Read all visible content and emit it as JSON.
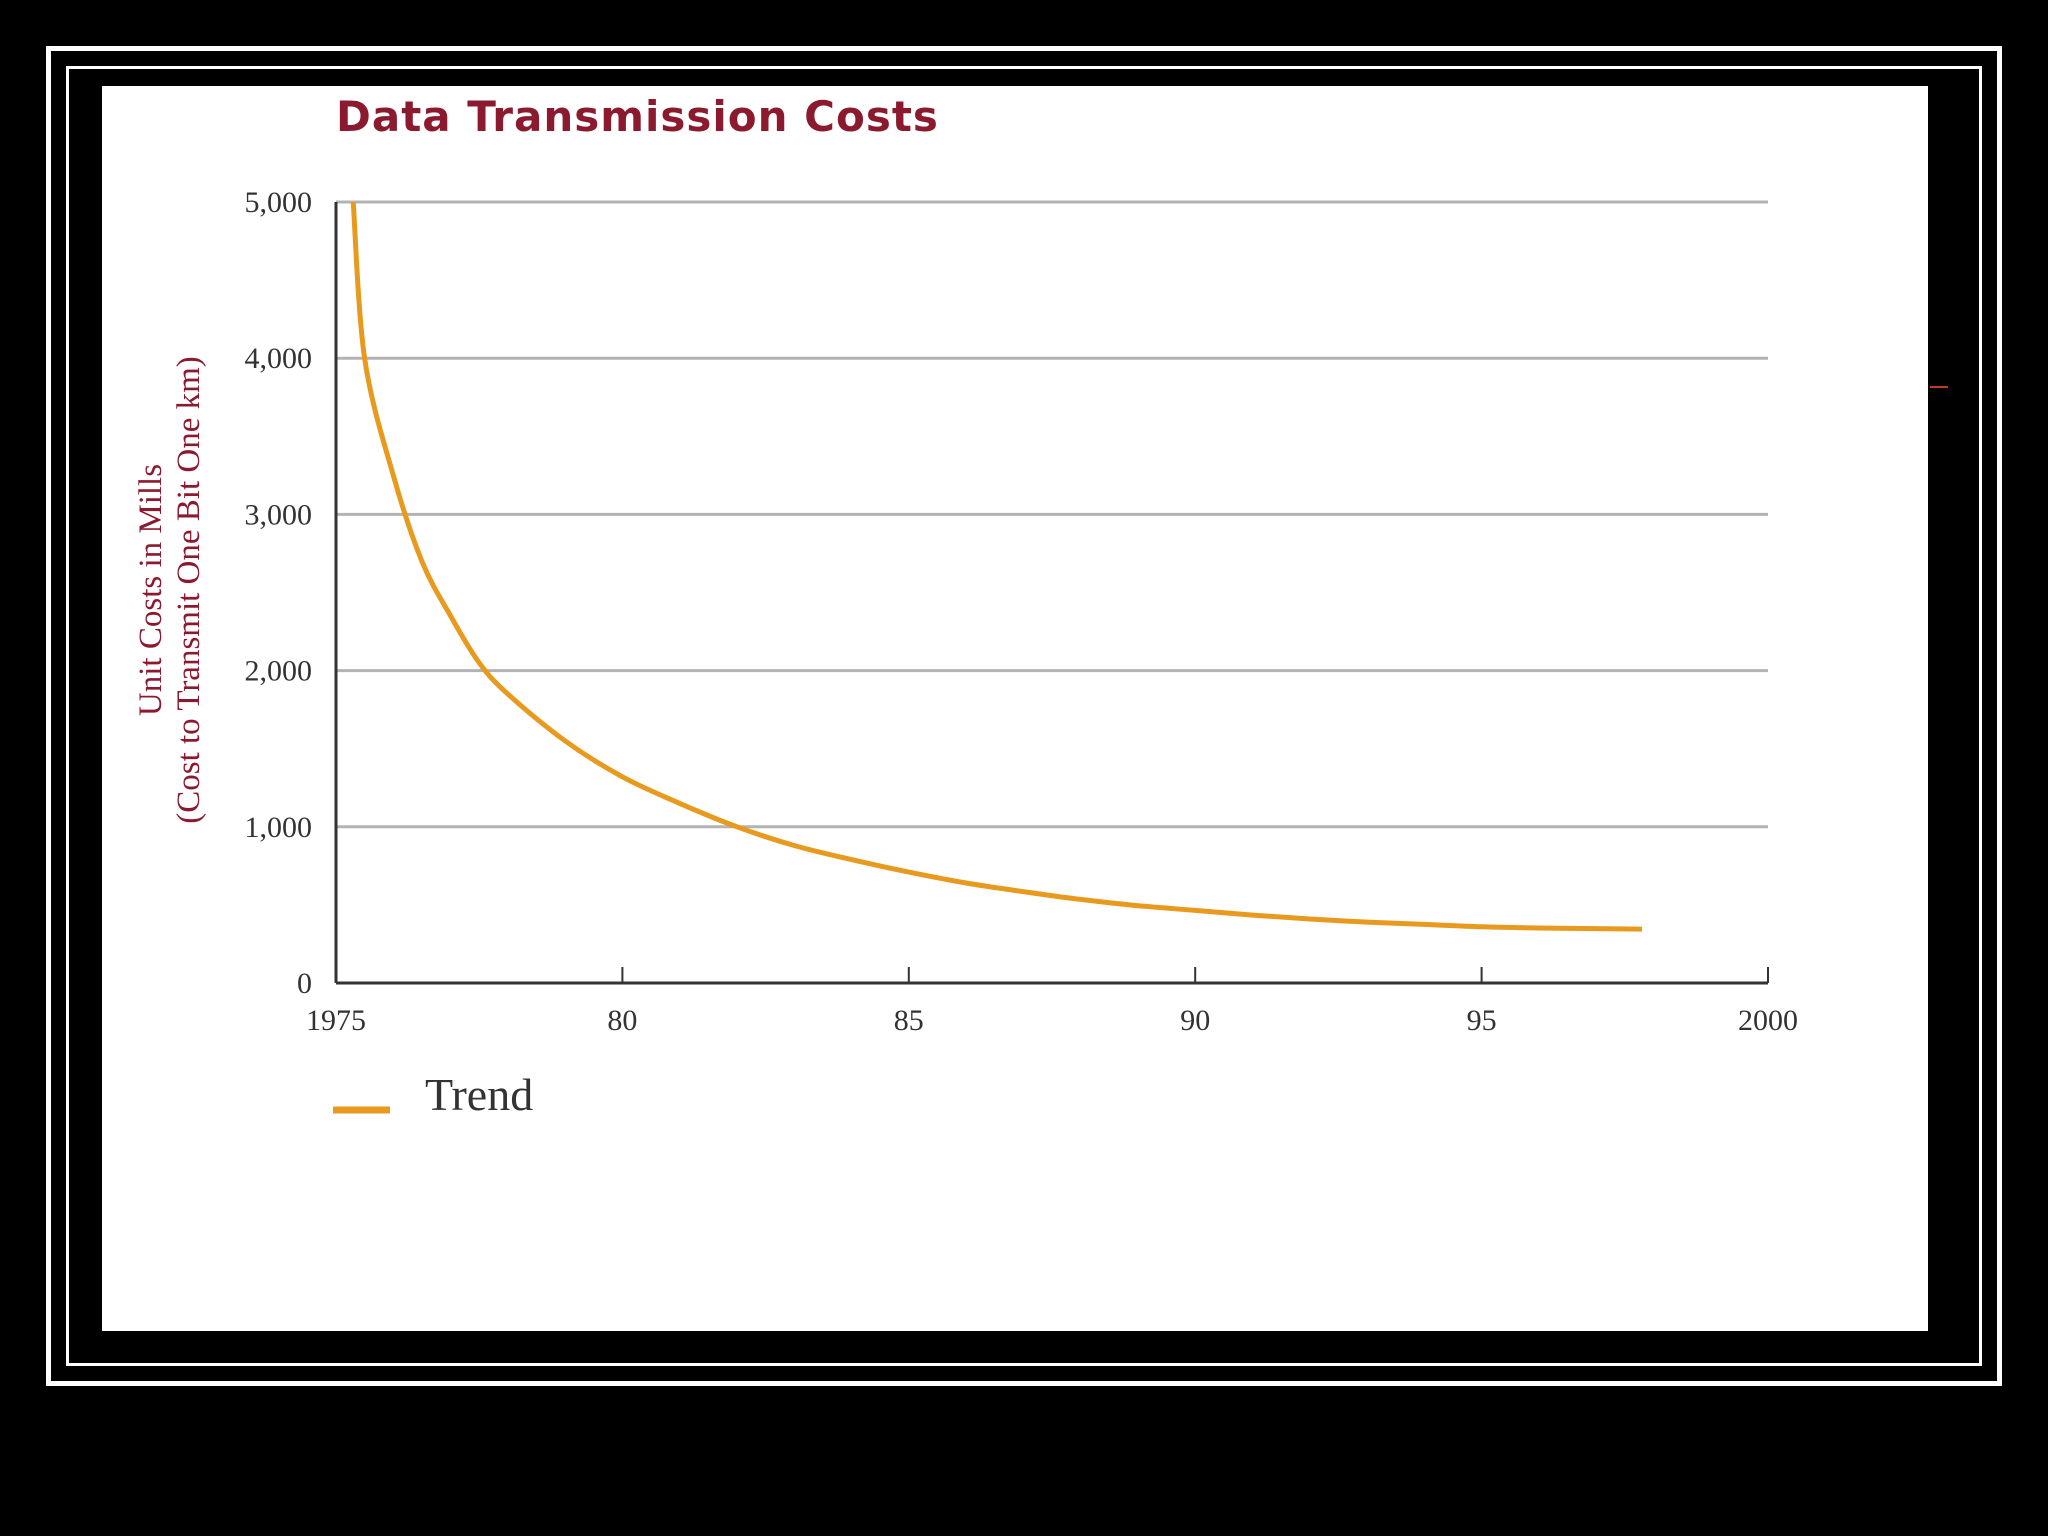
{
  "chart_data": {
    "type": "line",
    "title": "Data Transmission Costs",
    "ylabel_line1": "Unit Costs in Mills",
    "ylabel_line2": "(Cost to Transmit One Bit One km)",
    "xlabel": "",
    "xlim": [
      1975,
      2000
    ],
    "ylim": [
      0,
      5000
    ],
    "x_ticks": [
      1975,
      1980,
      1985,
      1990,
      1995,
      2000
    ],
    "x_tick_labels": [
      "1975",
      "80",
      "85",
      "90",
      "95",
      "2000"
    ],
    "y_ticks": [
      0,
      1000,
      2000,
      3000,
      4000,
      5000
    ],
    "y_tick_labels": [
      "0",
      "1,000",
      "2,000",
      "3,000",
      "4,000",
      "5,000"
    ],
    "grid": true,
    "legend": "bottom-left",
    "series": [
      {
        "name": "Trend",
        "color": "#e89a1e",
        "x": [
          1975.3,
          1975.5,
          1976,
          1976.5,
          1977,
          1977.5,
          1978,
          1979,
          1980,
          1981,
          1982,
          1983,
          1984,
          1985,
          1986,
          1987,
          1988,
          1989,
          1990,
          1991,
          1992,
          1993,
          1994,
          1995,
          1996,
          1997,
          1997.8
        ],
        "y": [
          5000,
          4000,
          3250,
          2700,
          2350,
          2050,
          1850,
          1550,
          1320,
          1150,
          1000,
          880,
          790,
          710,
          640,
          585,
          535,
          495,
          465,
          435,
          410,
          390,
          375,
          360,
          352,
          348,
          345
        ]
      }
    ]
  }
}
